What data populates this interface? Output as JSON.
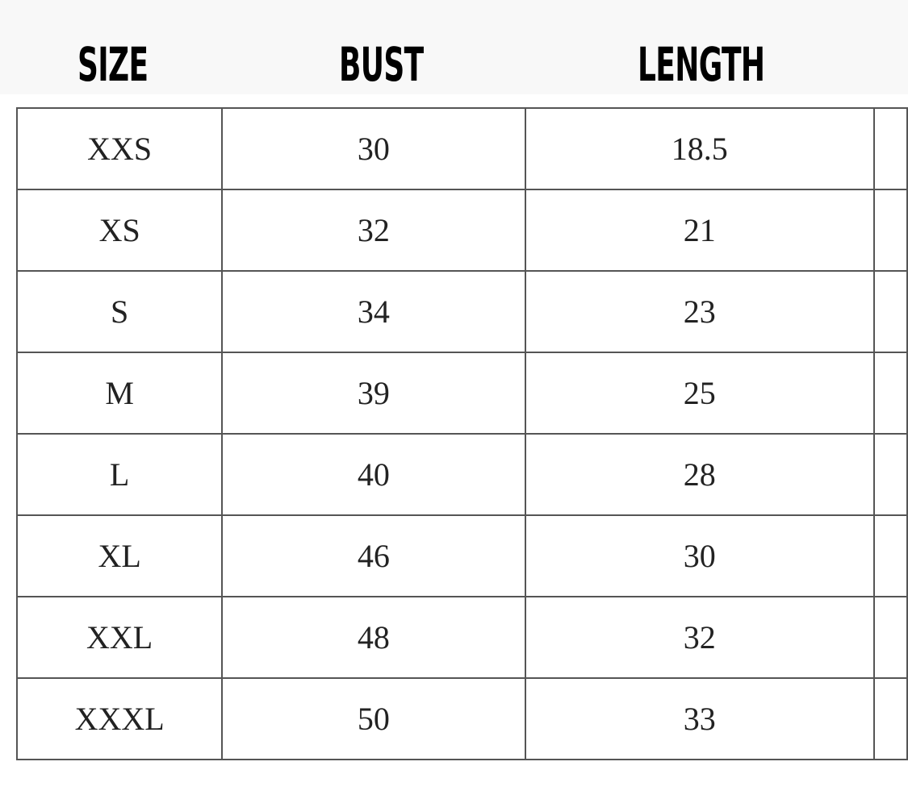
{
  "headers": [
    "SIZE",
    "BUST",
    "LENGTH"
  ],
  "rows": [
    {
      "size": "XXS",
      "bust": "30",
      "length": "18.5"
    },
    {
      "size": "XS",
      "bust": "32",
      "length": "21"
    },
    {
      "size": "S",
      "bust": "34",
      "length": "23"
    },
    {
      "size": "M",
      "bust": "39",
      "length": "25"
    },
    {
      "size": "L",
      "bust": "40",
      "length": "28"
    },
    {
      "size": "XL",
      "bust": "46",
      "length": "30"
    },
    {
      "size": "XXL",
      "bust": "48",
      "length": "32"
    },
    {
      "size": "XXXL",
      "bust": "50",
      "length": "33"
    }
  ]
}
